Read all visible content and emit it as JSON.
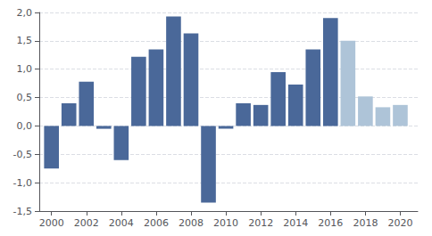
{
  "chart_data": {
    "type": "bar",
    "x": [
      2000,
      2001,
      2002,
      2003,
      2004,
      2005,
      2006,
      2007,
      2008,
      2009,
      2010,
      2011,
      2012,
      2013,
      2014,
      2015,
      2016,
      2017,
      2018,
      2019,
      2020
    ],
    "values": [
      -0.75,
      0.4,
      0.78,
      -0.05,
      -0.6,
      1.22,
      1.35,
      1.93,
      1.63,
      -1.35,
      -0.05,
      0.4,
      0.37,
      0.95,
      0.73,
      1.35,
      1.9,
      1.5,
      0.52,
      0.33,
      0.37
    ],
    "colors": [
      "#4a6899",
      "#4a6899",
      "#4a6899",
      "#4a6899",
      "#4a6899",
      "#4a6899",
      "#4a6899",
      "#4a6899",
      "#4a6899",
      "#4a6899",
      "#4a6899",
      "#4a6899",
      "#4a6899",
      "#4a6899",
      "#4a6899",
      "#4a6899",
      "#4a6899",
      "#aec4d8",
      "#aec4d8",
      "#aec4d8",
      "#aec4d8"
    ],
    "xlim": [
      1999.3,
      2021.0
    ],
    "xticks": [
      2000,
      2002,
      2004,
      2006,
      2008,
      2010,
      2012,
      2014,
      2016,
      2018,
      2020
    ],
    "ylim": [
      -1.5,
      2.0
    ],
    "yticks": [
      {
        "value": -1.5,
        "label": "-1,5"
      },
      {
        "value": -1.0,
        "label": "-1,0"
      },
      {
        "value": -0.5,
        "label": "-0,5"
      },
      {
        "value": 0.0,
        "label": "0,0"
      },
      {
        "value": 0.5,
        "label": "0,5"
      },
      {
        "value": 1.0,
        "label": "1,0"
      },
      {
        "value": 1.5,
        "label": "1,5"
      },
      {
        "value": 2.0,
        "label": "2,0"
      }
    ],
    "grid": true
  }
}
